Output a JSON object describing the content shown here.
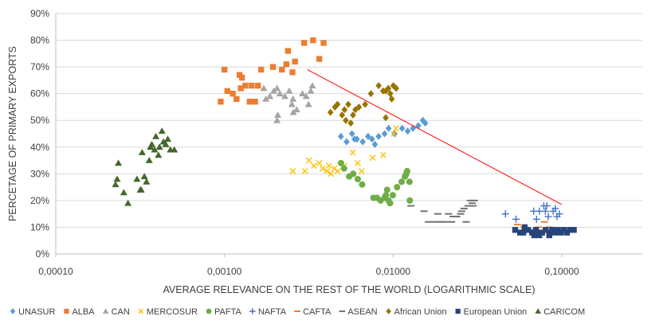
{
  "chart_data": {
    "type": "scatter",
    "title": "",
    "xlabel": "AVERAGE RELEVANCE ON THE REST OF THE WORLD (LOGARITHMIC SCALE)",
    "ylabel": "PERCETAGE OF PRIMARY EXPORTS",
    "x_scale": "log",
    "xlim": [
      0.0001,
      0.3
    ],
    "ylim": [
      0,
      0.9
    ],
    "x_ticks": [
      0.0001,
      0.001,
      0.01,
      0.1
    ],
    "x_tick_labels": [
      "0,00010",
      "0,00100",
      "0,01000",
      "0,10000"
    ],
    "y_ticks": [
      0,
      0.1,
      0.2,
      0.3,
      0.4,
      0.5,
      0.6,
      0.7,
      0.8,
      0.9
    ],
    "y_tick_labels": [
      "0%",
      "10%",
      "20%",
      "30%",
      "40%",
      "50%",
      "60%",
      "70%",
      "80%",
      "90%"
    ],
    "grid": "horizontal",
    "legend_position": "bottom",
    "trendline": {
      "color": "#FF0000",
      "points": [
        [
          0.0031,
          0.69
        ],
        [
          0.1,
          0.185
        ]
      ]
    },
    "series": [
      {
        "name": "UNASUR",
        "color": "#5B9BD5",
        "marker": "diamond",
        "points": [
          [
            0.0049,
            0.44
          ],
          [
            0.0053,
            0.42
          ],
          [
            0.0057,
            0.45
          ],
          [
            0.0061,
            0.43
          ],
          [
            0.0066,
            0.42
          ],
          [
            0.0071,
            0.44
          ],
          [
            0.0075,
            0.43
          ],
          [
            0.0082,
            0.44
          ],
          [
            0.0089,
            0.45
          ],
          [
            0.0094,
            0.47
          ],
          [
            0.0102,
            0.45
          ],
          [
            0.0113,
            0.47
          ],
          [
            0.0122,
            0.46
          ],
          [
            0.0131,
            0.47
          ],
          [
            0.0141,
            0.48
          ],
          [
            0.015,
            0.5
          ],
          [
            0.0155,
            0.49
          ],
          [
            0.0078,
            0.41
          ],
          [
            0.0059,
            0.43
          ]
        ]
      },
      {
        "name": "ALBA",
        "color": "#ED7D31",
        "marker": "square",
        "points": [
          [
            0.00095,
            0.57
          ],
          [
            0.001,
            0.69
          ],
          [
            0.00104,
            0.61
          ],
          [
            0.00112,
            0.6
          ],
          [
            0.00118,
            0.58
          ],
          [
            0.00123,
            0.67
          ],
          [
            0.00125,
            0.62
          ],
          [
            0.00127,
            0.66
          ],
          [
            0.00133,
            0.63
          ],
          [
            0.00141,
            0.57
          ],
          [
            0.00145,
            0.63
          ],
          [
            0.00152,
            0.57
          ],
          [
            0.00158,
            0.63
          ],
          [
            0.00165,
            0.69
          ],
          [
            0.00194,
            0.7
          ],
          [
            0.00219,
            0.69
          ],
          [
            0.00238,
            0.76
          ],
          [
            0.00253,
            0.68
          ],
          [
            0.00262,
            0.72
          ],
          [
            0.00297,
            0.79
          ],
          [
            0.00335,
            0.8
          ],
          [
            0.00365,
            0.73
          ],
          [
            0.00387,
            0.79
          ],
          [
            0.00233,
            0.71
          ]
        ]
      },
      {
        "name": "CAN",
        "color": "#A5A5A5",
        "marker": "triangle",
        "points": [
          [
            0.00171,
            0.62
          ],
          [
            0.00176,
            0.58
          ],
          [
            0.00186,
            0.59
          ],
          [
            0.00196,
            0.61
          ],
          [
            0.00205,
            0.5
          ],
          [
            0.00207,
            0.52
          ],
          [
            0.00213,
            0.6
          ],
          [
            0.00228,
            0.59
          ],
          [
            0.00242,
            0.61
          ],
          [
            0.00251,
            0.56
          ],
          [
            0.00256,
            0.53
          ],
          [
            0.00268,
            0.54
          ],
          [
            0.0029,
            0.6
          ],
          [
            0.00305,
            0.59
          ],
          [
            0.00315,
            0.56
          ],
          [
            0.00325,
            0.61
          ],
          [
            0.00332,
            0.63
          ],
          [
            0.00205,
            0.62
          ],
          [
            0.00255,
            0.58
          ]
        ]
      },
      {
        "name": "MERCOSUR",
        "color": "#FFC000",
        "marker": "x",
        "points": [
          [
            0.00254,
            0.31
          ],
          [
            0.003,
            0.31
          ],
          [
            0.00317,
            0.35
          ],
          [
            0.00339,
            0.33
          ],
          [
            0.00365,
            0.34
          ],
          [
            0.00381,
            0.32
          ],
          [
            0.00405,
            0.31
          ],
          [
            0.00416,
            0.33
          ],
          [
            0.00428,
            0.3
          ],
          [
            0.00448,
            0.32
          ],
          [
            0.00468,
            0.31
          ],
          [
            0.00512,
            0.33
          ],
          [
            0.00576,
            0.38
          ],
          [
            0.00617,
            0.34
          ],
          [
            0.00651,
            0.31
          ],
          [
            0.00756,
            0.36
          ],
          [
            0.00873,
            0.37
          ],
          [
            0.0101,
            0.45
          ],
          [
            0.0104,
            0.47
          ]
        ]
      },
      {
        "name": "PAFTA",
        "color": "#70AD47",
        "marker": "circle",
        "points": [
          [
            0.00491,
            0.34
          ],
          [
            0.00512,
            0.32
          ],
          [
            0.00549,
            0.29
          ],
          [
            0.0058,
            0.3
          ],
          [
            0.00617,
            0.28
          ],
          [
            0.00655,
            0.26
          ],
          [
            0.00764,
            0.21
          ],
          [
            0.00802,
            0.21
          ],
          [
            0.00843,
            0.2
          ],
          [
            0.0089,
            0.21
          ],
          [
            0.00905,
            0.22
          ],
          [
            0.00921,
            0.24
          ],
          [
            0.0094,
            0.2
          ],
          [
            0.00995,
            0.22
          ],
          [
            0.01055,
            0.25
          ],
          [
            0.01123,
            0.27
          ],
          [
            0.01175,
            0.29
          ],
          [
            0.01196,
            0.3
          ],
          [
            0.0121,
            0.31
          ],
          [
            0.0125,
            0.27
          ],
          [
            0.01255,
            0.2
          ],
          [
            0.00959,
            0.19
          ]
        ]
      },
      {
        "name": "NAFTA",
        "color": "#4472C4",
        "marker": "plus",
        "points": [
          [
            0.0463,
            0.15
          ],
          [
            0.0535,
            0.13
          ],
          [
            0.0681,
            0.16
          ],
          [
            0.0708,
            0.13
          ],
          [
            0.0736,
            0.16
          ],
          [
            0.0782,
            0.18
          ],
          [
            0.0814,
            0.18
          ],
          [
            0.0831,
            0.14
          ],
          [
            0.0889,
            0.16
          ],
          [
            0.0916,
            0.17
          ],
          [
            0.0936,
            0.14
          ],
          [
            0.0967,
            0.15
          ],
          [
            0.0799,
            0.16
          ]
        ]
      },
      {
        "name": "CAFTA",
        "color": "#ED7D31",
        "marker": "dash",
        "points": [
          [
            0.0546,
            0.11
          ],
          [
            0.0597,
            0.1
          ],
          [
            0.0661,
            0.09
          ],
          [
            0.0727,
            0.1
          ],
          [
            0.0789,
            0.12
          ],
          [
            0.0843,
            0.1
          ]
        ]
      },
      {
        "name": "ASEAN",
        "color": "#767171",
        "marker": "dash",
        "points": [
          [
            0.01275,
            0.18
          ],
          [
            0.01525,
            0.16
          ],
          [
            0.0162,
            0.12
          ],
          [
            0.0178,
            0.12
          ],
          [
            0.0184,
            0.15
          ],
          [
            0.0192,
            0.12
          ],
          [
            0.0201,
            0.12
          ],
          [
            0.0213,
            0.15
          ],
          [
            0.0222,
            0.12
          ],
          [
            0.0227,
            0.14
          ],
          [
            0.0238,
            0.14
          ],
          [
            0.0251,
            0.15
          ],
          [
            0.0255,
            0.16
          ],
          [
            0.0263,
            0.17
          ],
          [
            0.0271,
            0.12
          ],
          [
            0.0278,
            0.18
          ],
          [
            0.0287,
            0.2
          ],
          [
            0.0294,
            0.19
          ],
          [
            0.0298,
            0.18
          ],
          [
            0.0303,
            0.2
          ]
        ]
      },
      {
        "name": "African Union",
        "color": "#997300",
        "marker": "diamond",
        "points": [
          [
            0.00425,
            0.53
          ],
          [
            0.00452,
            0.55
          ],
          [
            0.00468,
            0.56
          ],
          [
            0.00498,
            0.52
          ],
          [
            0.00515,
            0.54
          ],
          [
            0.00524,
            0.5
          ],
          [
            0.00542,
            0.56
          ],
          [
            0.00561,
            0.49
          ],
          [
            0.00578,
            0.52
          ],
          [
            0.00597,
            0.54
          ],
          [
            0.00627,
            0.55
          ],
          [
            0.00682,
            0.56
          ],
          [
            0.00738,
            0.6
          ],
          [
            0.00821,
            0.63
          ],
          [
            0.00872,
            0.61
          ],
          [
            0.00904,
            0.61
          ],
          [
            0.00937,
            0.62
          ],
          [
            0.00962,
            0.6
          ],
          [
            0.00981,
            0.58
          ],
          [
            0.01003,
            0.63
          ],
          [
            0.01043,
            0.62
          ],
          [
            0.00904,
            0.51
          ]
        ]
      },
      {
        "name": "European Union",
        "color": "#264478",
        "marker": "square",
        "points": [
          [
            0.0529,
            0.09
          ],
          [
            0.0566,
            0.08
          ],
          [
            0.0602,
            0.1
          ],
          [
            0.0631,
            0.09
          ],
          [
            0.0667,
            0.08
          ],
          [
            0.0702,
            0.09
          ],
          [
            0.0735,
            0.07
          ],
          [
            0.0764,
            0.08
          ],
          [
            0.0802,
            0.09
          ],
          [
            0.0842,
            0.08
          ],
          [
            0.0876,
            0.09
          ],
          [
            0.0912,
            0.08
          ],
          [
            0.0946,
            0.09
          ],
          [
            0.0985,
            0.08
          ],
          [
            0.1027,
            0.09
          ],
          [
            0.1072,
            0.08
          ],
          [
            0.1117,
            0.09
          ],
          [
            0.1178,
            0.09
          ],
          [
            0.0687,
            0.07
          ],
          [
            0.0715,
            0.08
          ],
          [
            0.0843,
            0.07
          ],
          [
            0.0591,
            0.08
          ]
        ]
      },
      {
        "name": "CARICOM",
        "color": "#43682B",
        "marker": "triangle",
        "points": [
          [
            0.000226,
            0.26
          ],
          [
            0.000231,
            0.28
          ],
          [
            0.000235,
            0.34
          ],
          [
            0.000253,
            0.23
          ],
          [
            0.000268,
            0.19
          ],
          [
            0.000303,
            0.28
          ],
          [
            0.000317,
            0.24
          ],
          [
            0.000325,
            0.38
          ],
          [
            0.000335,
            0.29
          ],
          [
            0.000345,
            0.27
          ],
          [
            0.000358,
            0.35
          ],
          [
            0.000364,
            0.4
          ],
          [
            0.000371,
            0.41
          ],
          [
            0.000385,
            0.39
          ],
          [
            0.000392,
            0.44
          ],
          [
            0.000406,
            0.37
          ],
          [
            0.000412,
            0.4
          ],
          [
            0.000426,
            0.46
          ],
          [
            0.000435,
            0.42
          ],
          [
            0.000449,
            0.41
          ],
          [
            0.000461,
            0.43
          ],
          [
            0.000478,
            0.39
          ],
          [
            0.000504,
            0.39
          ],
          [
            0.000321,
            0.24
          ]
        ]
      }
    ]
  }
}
